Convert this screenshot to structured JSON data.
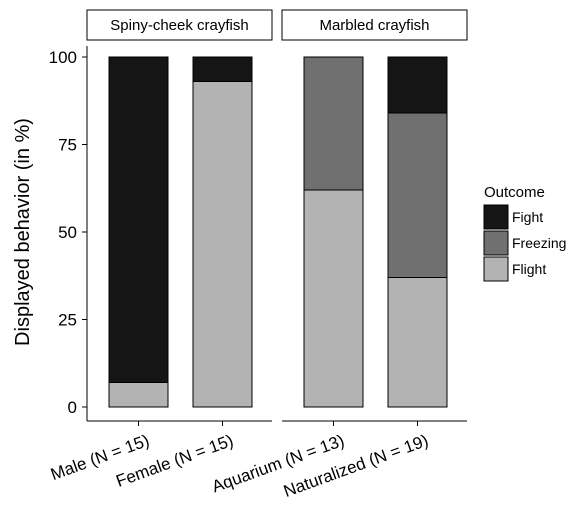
{
  "chart_data": {
    "type": "bar",
    "stacked": true,
    "ylabel": "Displayed behavior (in %)",
    "xlabel": "",
    "ylim": [
      0,
      100
    ],
    "yticks": [
      0,
      25,
      50,
      75,
      100
    ],
    "legend": {
      "title": "Outcome",
      "placement": "right",
      "entries": [
        {
          "name": "Fight",
          "color": "#151515"
        },
        {
          "name": "Freezing",
          "color": "#707070"
        },
        {
          "name": "Flight",
          "color": "#b3b3b3"
        }
      ]
    },
    "panels": [
      {
        "title": "Spiny-cheek crayfish",
        "categories": [
          "Male (N = 15)",
          "Female (N = 15)"
        ],
        "series": [
          {
            "name": "Flight",
            "values": [
              7,
              93
            ]
          },
          {
            "name": "Freezing",
            "values": [
              0,
              0
            ]
          },
          {
            "name": "Fight",
            "values": [
              93,
              7
            ]
          }
        ]
      },
      {
        "title": "Marbled crayfish",
        "categories": [
          "Aquarium (N = 13)",
          "Naturalized (N = 19)"
        ],
        "series": [
          {
            "name": "Flight",
            "values": [
              62,
              37
            ]
          },
          {
            "name": "Freezing",
            "values": [
              38,
              47
            ]
          },
          {
            "name": "Fight",
            "values": [
              0,
              16
            ]
          }
        ]
      }
    ]
  }
}
